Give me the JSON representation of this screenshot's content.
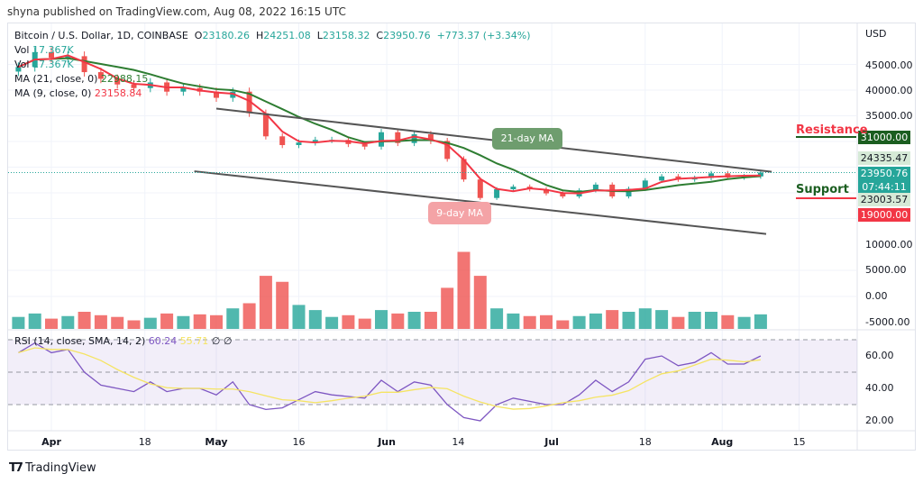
{
  "publisher": "shyna published on TradingView.com, Aug 08, 2022 16:15 UTC",
  "header": {
    "symbol": "Bitcoin / U.S. Dollar, 1D, COINBASE",
    "o_label": "O",
    "o": "23180.26",
    "h_label": "H",
    "h": "24251.08",
    "l_label": "L",
    "l": "23158.32",
    "c_label": "C",
    "c": "23950.76",
    "change": "+773.37 (+3.34%)"
  },
  "legend": {
    "vol1_label": "Vol",
    "vol1": "17.367K",
    "vol2_label": "Vol",
    "vol2": "17.367K",
    "ma21_label": "MA (21, close, 0)",
    "ma21": "22988.15",
    "ma9_label": "MA (9, close, 0)",
    "ma9": "23158.84",
    "rsi_label": "RSI (14, close, SMA, 14, 2)",
    "rsi": "60.24",
    "rsi_sma": "55.71",
    "rsi_extra": "∅ ∅"
  },
  "colors": {
    "up": "#26a69a",
    "down": "#ef5350",
    "ma9": "#f23645",
    "ma21": "#2e7d32",
    "rsi": "#7e57c2",
    "rsi_sma": "#f5e463",
    "resistance": "#1b5e20",
    "support": "#f23645"
  },
  "logo": "TradingView",
  "chart_data": {
    "type": "candlestick",
    "currency": "USD",
    "y_ticks": [
      "45000.00",
      "40000.00",
      "35000.00",
      "10000.00",
      "5000.00",
      "0.00",
      "-5000.00"
    ],
    "rsi_ticks": [
      "60.00",
      "40.00",
      "20.00"
    ],
    "x_ticks": [
      {
        "label": "Apr",
        "date": "2022-04-01",
        "bold": true
      },
      {
        "label": "18",
        "date": "2022-04-18"
      },
      {
        "label": "May",
        "date": "2022-05-01",
        "bold": true
      },
      {
        "label": "16",
        "date": "2022-05-16"
      },
      {
        "label": "Jun",
        "date": "2022-06-01",
        "bold": true
      },
      {
        "label": "14",
        "date": "2022-06-14"
      },
      {
        "label": "Jul",
        "date": "2022-07-01",
        "bold": true
      },
      {
        "label": "18",
        "date": "2022-07-18"
      },
      {
        "label": "Aug",
        "date": "2022-08-01",
        "bold": true
      },
      {
        "label": "15",
        "date": "2022-08-15"
      }
    ],
    "dates": [
      "2022-03-26",
      "2022-03-29",
      "2022-04-01",
      "2022-04-04",
      "2022-04-07",
      "2022-04-10",
      "2022-04-13",
      "2022-04-16",
      "2022-04-19",
      "2022-04-22",
      "2022-04-25",
      "2022-04-28",
      "2022-05-01",
      "2022-05-04",
      "2022-05-07",
      "2022-05-10",
      "2022-05-13",
      "2022-05-16",
      "2022-05-19",
      "2022-05-22",
      "2022-05-25",
      "2022-05-28",
      "2022-05-31",
      "2022-06-03",
      "2022-06-06",
      "2022-06-09",
      "2022-06-12",
      "2022-06-15",
      "2022-06-18",
      "2022-06-21",
      "2022-06-24",
      "2022-06-27",
      "2022-06-30",
      "2022-07-03",
      "2022-07-06",
      "2022-07-09",
      "2022-07-12",
      "2022-07-15",
      "2022-07-18",
      "2022-07-21",
      "2022-07-24",
      "2022-07-27",
      "2022-07-30",
      "2022-08-02",
      "2022-08-05",
      "2022-08-08"
    ],
    "close": [
      44500,
      47400,
      46300,
      46600,
      43500,
      42200,
      41100,
      40400,
      41500,
      39700,
      40400,
      39700,
      38500,
      39700,
      35500,
      31000,
      29300,
      29800,
      30300,
      30300,
      29500,
      29000,
      31800,
      29700,
      31400,
      30100,
      26600,
      22600,
      19000,
      20700,
      21200,
      20700,
      19900,
      19300,
      20500,
      21600,
      19300,
      20800,
      22400,
      23200,
      22600,
      22900,
      23800,
      23000,
      23200,
      23950
    ],
    "volume": [
      14,
      18,
      12,
      15,
      20,
      16,
      14,
      10,
      13,
      18,
      15,
      17,
      16,
      24,
      30,
      62,
      55,
      28,
      22,
      14,
      16,
      12,
      22,
      18,
      20,
      20,
      48,
      90,
      62,
      24,
      18,
      15,
      16,
      10,
      15,
      18,
      22,
      20,
      24,
      22,
      14,
      20,
      20,
      16,
      14,
      17
    ],
    "rsi": [
      62,
      68,
      62,
      64,
      50,
      42,
      40,
      38,
      44,
      38,
      40,
      40,
      36,
      44,
      30,
      27,
      28,
      33,
      38,
      36,
      35,
      34,
      45,
      38,
      44,
      42,
      30,
      22,
      20,
      30,
      34,
      32,
      30,
      30,
      36,
      45,
      38,
      44,
      58,
      60,
      54,
      56,
      62,
      55,
      55,
      60
    ],
    "trendlines": [
      {
        "from": [
          "2022-05-01",
          36400
        ],
        "to": [
          "2022-08-10",
          24100
        ]
      },
      {
        "from": [
          "2022-04-27",
          24200
        ],
        "to": [
          "2022-08-09",
          12000
        ]
      }
    ],
    "annotations": {
      "ma21": "21-day MA",
      "ma9": "9-day MA",
      "resistance": "Resistance",
      "support": "Support"
    },
    "price_tags": {
      "resistance": "31000.00",
      "high": "24335.47",
      "last": "23950.76",
      "countdown": "07:44:11",
      "low": "23003.57",
      "support": "19000.00"
    }
  }
}
